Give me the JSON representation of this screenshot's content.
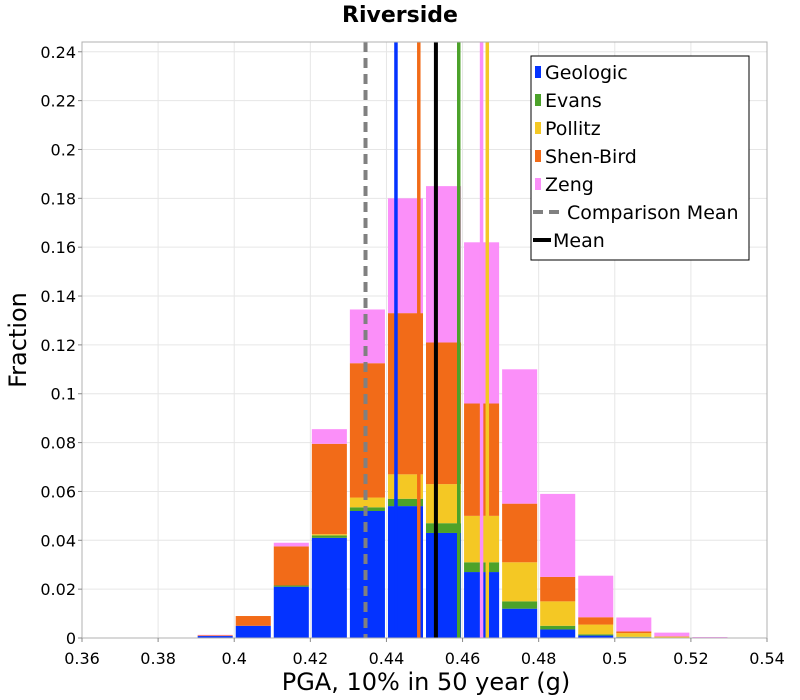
{
  "chart_data": {
    "type": "bar",
    "stacked": true,
    "title": "Riverside",
    "xlabel": "PGA, 10% in 50 year (g)",
    "ylabel": "Fraction",
    "xlim": [
      0.36,
      0.54
    ],
    "ylim": [
      0,
      0.244
    ],
    "xticks": [
      "0.36",
      "0.38",
      "0.4",
      "0.42",
      "0.44",
      "0.46",
      "0.48",
      "0.5",
      "0.52",
      "0.54"
    ],
    "yticks": [
      "0",
      "0.02",
      "0.04",
      "0.06",
      "0.08",
      "0.1",
      "0.12",
      "0.14",
      "0.16",
      "0.18",
      "0.2",
      "0.22",
      "0.24"
    ],
    "grid": true,
    "legend_position": "top-right",
    "bin_width": 0.01,
    "bin_centers": [
      0.375,
      0.385,
      0.395,
      0.405,
      0.415,
      0.425,
      0.435,
      0.445,
      0.455,
      0.465,
      0.475,
      0.485,
      0.495,
      0.505,
      0.515,
      0.525,
      0.535
    ],
    "series": [
      {
        "name": "Geologic",
        "color": "#0433ff",
        "values": [
          0.0,
          0.0,
          0.0008,
          0.005,
          0.021,
          0.041,
          0.052,
          0.054,
          0.043,
          0.027,
          0.012,
          0.0035,
          0.001,
          0.0003,
          0.0,
          0.0,
          0.0
        ]
      },
      {
        "name": "Evans",
        "color": "#4ca22a",
        "values": [
          0.0,
          0.0,
          0.0,
          0.0,
          0.0005,
          0.001,
          0.0015,
          0.003,
          0.004,
          0.004,
          0.003,
          0.0015,
          0.0005,
          0.0002,
          0.0,
          0.0,
          0.0
        ]
      },
      {
        "name": "Pollitz",
        "color": "#f4c824",
        "values": [
          0.0,
          0.0,
          0.0,
          0.0,
          0.0,
          0.0005,
          0.004,
          0.01,
          0.016,
          0.019,
          0.016,
          0.01,
          0.004,
          0.0015,
          0.0005,
          0.0,
          0.0
        ]
      },
      {
        "name": "Shen-Bird",
        "color": "#f26b18",
        "values": [
          0.0,
          0.0,
          0.0003,
          0.004,
          0.016,
          0.037,
          0.055,
          0.066,
          0.058,
          0.046,
          0.024,
          0.01,
          0.003,
          0.0007,
          0.0002,
          0.0,
          0.0
        ]
      },
      {
        "name": "Zeng",
        "color": "#fb8ff9",
        "values": [
          0.0,
          0.0002,
          0.0002,
          0.0,
          0.0015,
          0.006,
          0.022,
          0.047,
          0.064,
          0.066,
          0.055,
          0.034,
          0.017,
          0.0057,
          0.0015,
          0.0004,
          0.0002
        ]
      }
    ],
    "lines": [
      {
        "name": "Geologic",
        "x": 0.4425,
        "color": "#0433ff",
        "style": "solid",
        "in_legend": false
      },
      {
        "name": "Shen-Bird",
        "x": 0.4485,
        "color": "#f26b18",
        "style": "solid",
        "in_legend": false
      },
      {
        "name": "Evans",
        "x": 0.459,
        "color": "#4ca22a",
        "style": "solid",
        "in_legend": false
      },
      {
        "name": "Zeng",
        "x": 0.465,
        "color": "#fb8ff9",
        "style": "solid",
        "in_legend": false
      },
      {
        "name": "Pollitz",
        "x": 0.4665,
        "color": "#f4c824",
        "style": "solid",
        "in_legend": false
      },
      {
        "name": "Mean",
        "x": 0.453,
        "color": "#000000",
        "style": "solid",
        "in_legend": true
      },
      {
        "name": "Comparison Mean",
        "x": 0.4345,
        "color": "#808080",
        "style": "dashed",
        "in_legend": true
      }
    ],
    "legend": [
      {
        "label": "Geologic",
        "color": "#0433ff",
        "kind": "box"
      },
      {
        "label": "Evans",
        "color": "#4ca22a",
        "kind": "box"
      },
      {
        "label": "Pollitz",
        "color": "#f4c824",
        "kind": "box"
      },
      {
        "label": "Shen-Bird",
        "color": "#f26b18",
        "kind": "box"
      },
      {
        "label": "Zeng",
        "color": "#fb8ff9",
        "kind": "box"
      },
      {
        "label": "Comparison Mean",
        "color": "#808080",
        "kind": "dashed"
      },
      {
        "label": "Mean",
        "color": "#000000",
        "kind": "solid"
      }
    ]
  }
}
